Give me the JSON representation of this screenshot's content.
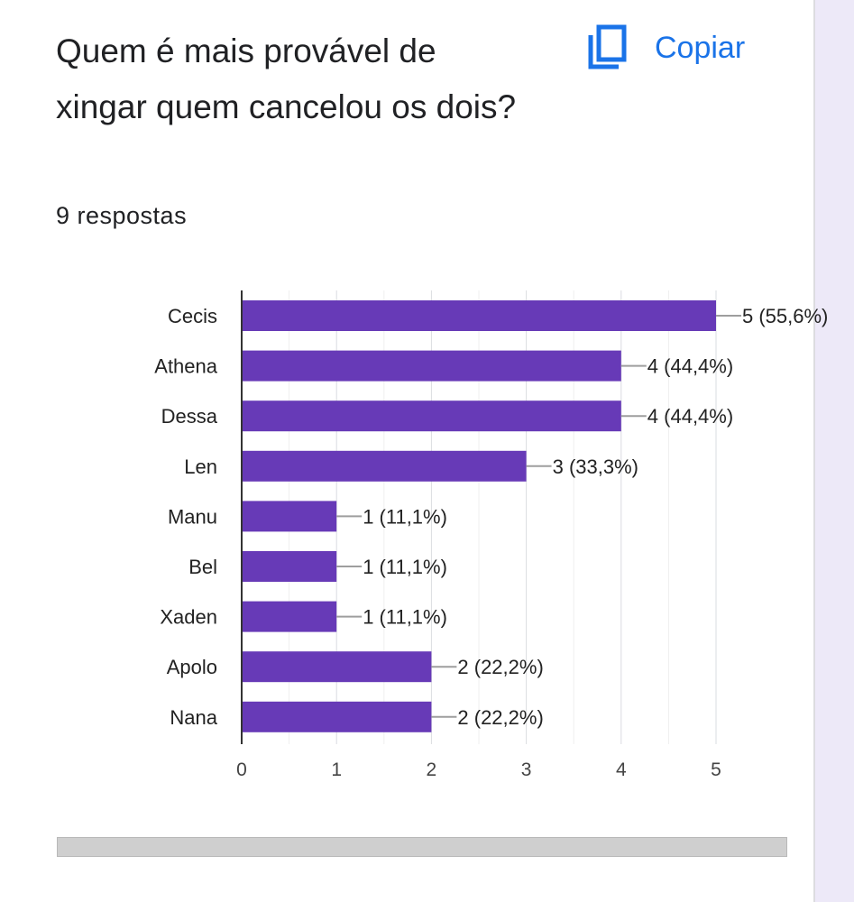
{
  "question": {
    "title": "Quem é mais provável de xingar quem cancelou os dois?",
    "responses": "9 respostas",
    "copy_label": "Copiar",
    "copy_icon": "copy-icon"
  },
  "colors": {
    "bar": "#673ab7",
    "accent": "#1a73e8"
  },
  "chart_data": {
    "type": "bar",
    "orientation": "horizontal",
    "categories": [
      "Cecis",
      "Athena",
      "Dessa",
      "Len",
      "Manu",
      "Bel",
      "Xaden",
      "Apolo",
      "Nana"
    ],
    "values": [
      5,
      4,
      4,
      3,
      1,
      1,
      1,
      2,
      2
    ],
    "data_labels": [
      "5 (55,6%)",
      "4 (44,4%)",
      "4 (44,4%)",
      "3 (33,3%)",
      "1 (11,1%)",
      "1 (11,1%)",
      "1 (11,1%)",
      "2 (22,2%)",
      "2 (22,2%)"
    ],
    "xlim": [
      0,
      5
    ],
    "xticks": [
      0,
      1,
      2,
      3,
      4,
      5
    ],
    "grid": true,
    "legend": "none"
  }
}
